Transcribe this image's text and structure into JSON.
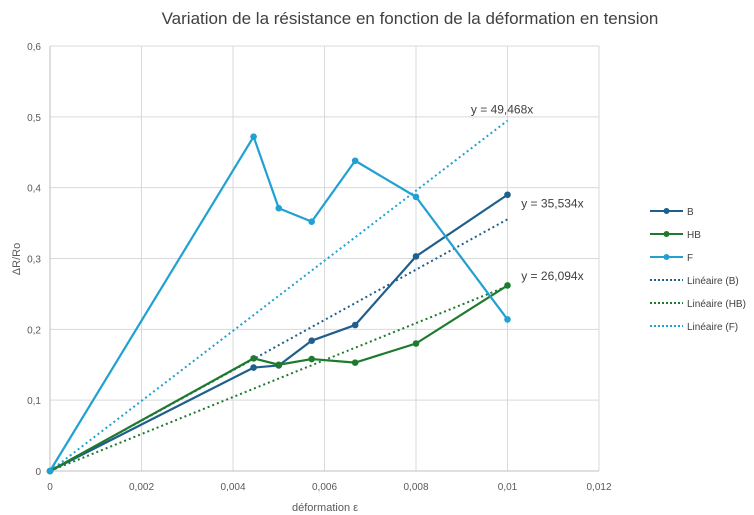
{
  "chart_data": {
    "type": "scatter",
    "title": "Variation de la résistance en fonction de la déformation en tension",
    "xlabel": "déformation ε",
    "ylabel": "ΔR/Ro",
    "xlim": [
      0,
      0.012
    ],
    "ylim": [
      0,
      0.6
    ],
    "x_ticks": [
      "0",
      "0,002",
      "0,004",
      "0,006",
      "0,008",
      "0,01",
      "0,012"
    ],
    "y_ticks": [
      "0",
      "0,1",
      "0,2",
      "0,3",
      "0,4",
      "0,5",
      "0,6"
    ],
    "grid": true,
    "legend_position": "right",
    "series": [
      {
        "name": "B",
        "color": "#1f5f8b",
        "style": "line-markers",
        "x": [
          0,
          0.00445,
          0.005,
          0.00572,
          0.00667,
          0.008,
          0.01
        ],
        "y": [
          0,
          0.146,
          0.149,
          0.184,
          0.206,
          0.303,
          0.39
        ]
      },
      {
        "name": "HB",
        "color": "#1e7a2e",
        "style": "line-markers",
        "x": [
          0,
          0.00445,
          0.005,
          0.00572,
          0.00667,
          0.008,
          0.01
        ],
        "y": [
          0,
          0.159,
          0.15,
          0.158,
          0.153,
          0.18,
          0.262
        ]
      },
      {
        "name": "F",
        "color": "#21a0d2",
        "style": "line-markers",
        "x": [
          0,
          0.00445,
          0.005,
          0.00572,
          0.00667,
          0.008,
          0.01
        ],
        "y": [
          0,
          0.472,
          0.371,
          0.352,
          0.438,
          0.387,
          0.214
        ]
      },
      {
        "name": "Linéaire (B)",
        "color": "#1f5f8b",
        "style": "dotted",
        "slope": 35.534,
        "x": [
          0,
          0.01
        ]
      },
      {
        "name": "Linéaire (HB)",
        "color": "#1e7a2e",
        "style": "dotted",
        "slope": 26.094,
        "x": [
          0,
          0.01
        ]
      },
      {
        "name": "Linéaire (F)",
        "color": "#21a0d2",
        "style": "dotted",
        "slope": 49.468,
        "x": [
          0,
          0.01
        ]
      }
    ],
    "annotations": [
      {
        "text": "y = 49,468x",
        "x": 0.0092,
        "y": 0.505
      },
      {
        "text": "y = 35,534x",
        "x": 0.0103,
        "y": 0.372
      },
      {
        "text": "y = 26,094x",
        "x": 0.0103,
        "y": 0.27
      }
    ]
  }
}
